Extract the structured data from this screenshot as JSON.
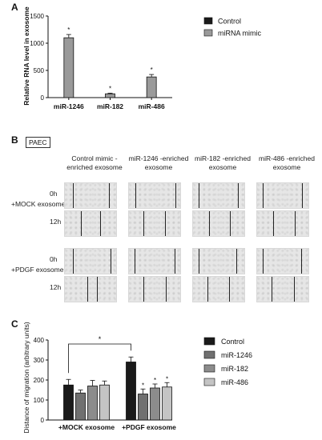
{
  "panelA": {
    "letter": "A",
    "ylabel": "Relative RNA level in exosome",
    "yticks": [
      "1500",
      "1000",
      "500",
      "0"
    ],
    "legend": [
      {
        "label": "Control",
        "color": "#1a1a1a"
      },
      {
        "label": "miRNA mimic",
        "color": "#9a9a9a"
      }
    ],
    "significance": "*"
  },
  "panelB": {
    "letter": "B",
    "box_label": "PAEC",
    "columns": [
      "Control mimic -enriched exosome",
      "miR-1246 -enriched exosome",
      "miR-182 -enriched exosome",
      "miR-486 -enriched exosome"
    ],
    "rows": [
      {
        "label": "+MOCK exosome",
        "times": [
          "0h",
          "12h"
        ]
      },
      {
        "label": "+PDGF exosome",
        "times": [
          "0h",
          "12h"
        ]
      }
    ]
  },
  "panelC": {
    "letter": "C",
    "ylabel": "Distance of migration (arbitrary units)",
    "yticks": [
      "400",
      "300",
      "200",
      "100",
      "0"
    ],
    "legend": [
      {
        "label": "Control",
        "color": "#1a1a1a"
      },
      {
        "label": "miR-1246",
        "color": "#707070"
      },
      {
        "label": "miR-182",
        "color": "#8c8c8c"
      },
      {
        "label": "miR-486",
        "color": "#c4c4c4"
      }
    ],
    "significance": "*"
  },
  "chart_data": [
    {
      "type": "bar",
      "title": "",
      "xlabel": "",
      "ylabel": "Relative RNA level in exosome",
      "ylim": [
        0,
        1500
      ],
      "categories": [
        "miR-1246",
        "miR-182",
        "miR-486"
      ],
      "series": [
        {
          "name": "Control",
          "values": [
            0,
            0,
            0
          ]
        },
        {
          "name": "miRNA mimic",
          "values": [
            1100,
            70,
            380
          ],
          "errors": [
            60,
            12,
            45
          ],
          "significance": [
            "*",
            "*",
            "*"
          ]
        }
      ]
    },
    {
      "type": "bar",
      "title": "",
      "xlabel": "",
      "ylabel": "Distance of migration (arbitrary units)",
      "ylim": [
        0,
        400
      ],
      "categories": [
        "+MOCK exosome",
        "+PDGF exosome"
      ],
      "series": [
        {
          "name": "Control",
          "values": [
            175,
            290
          ],
          "errors": [
            28,
            25
          ],
          "significance": [
            "",
            ""
          ]
        },
        {
          "name": "miR-1246",
          "values": [
            135,
            130
          ],
          "errors": [
            15,
            25
          ],
          "significance": [
            "",
            "*"
          ]
        },
        {
          "name": "miR-182",
          "values": [
            170,
            160
          ],
          "errors": [
            28,
            20
          ],
          "significance": [
            "",
            "*"
          ]
        },
        {
          "name": "miR-486",
          "values": [
            175,
            165
          ],
          "errors": [
            20,
            22
          ],
          "significance": [
            "",
            "*"
          ]
        }
      ],
      "bracket": {
        "from": "+MOCK exosome Control",
        "to": "+PDGF exosome Control",
        "label": "*"
      }
    }
  ]
}
